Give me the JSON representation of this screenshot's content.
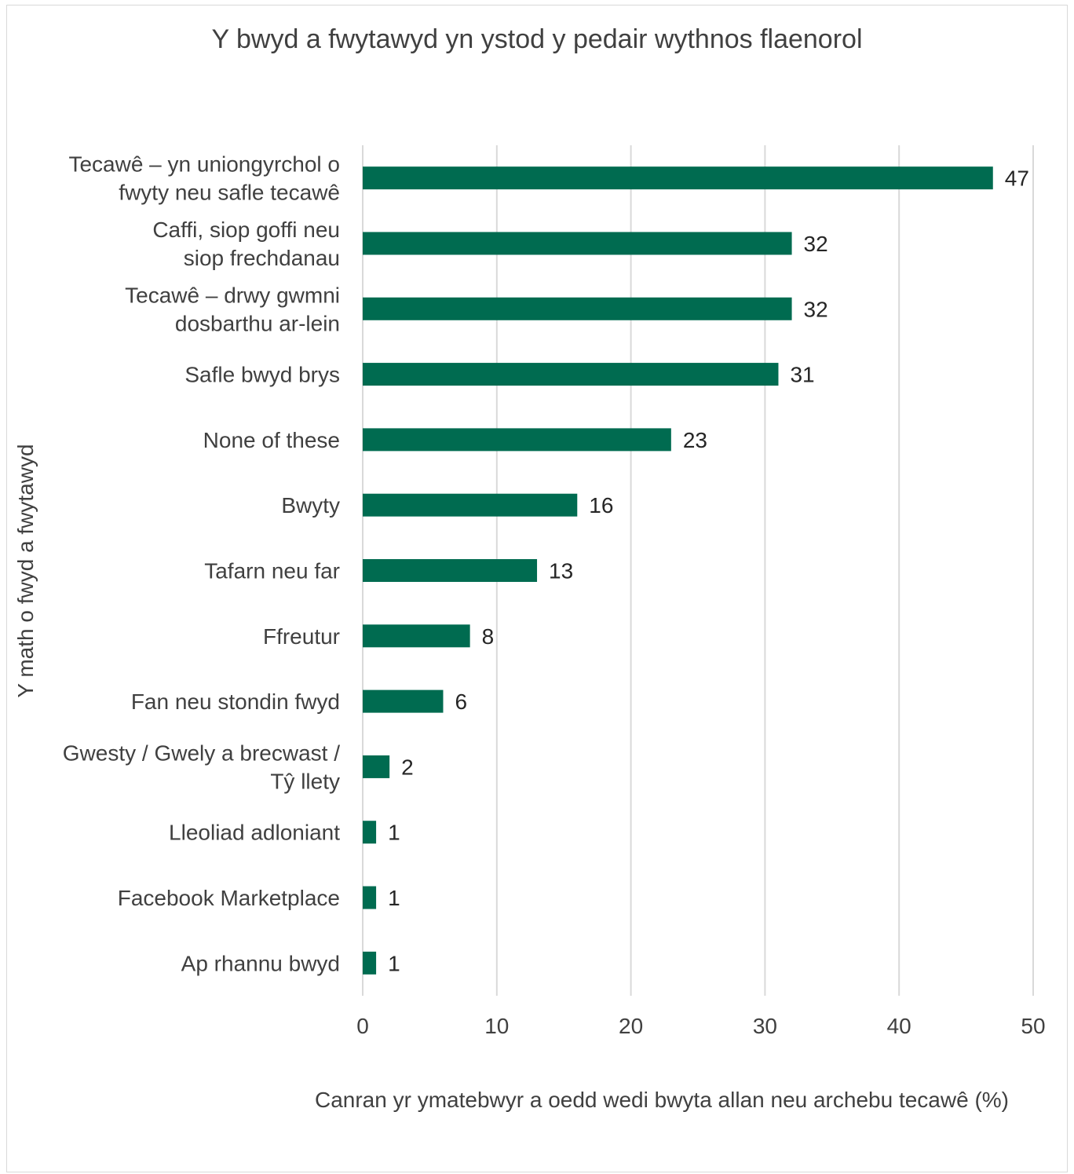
{
  "chart_data": {
    "type": "bar",
    "orientation": "horizontal",
    "title": "Y bwyd a fwytawyd yn ystod y pedair wythnos flaenorol",
    "xlabel": "Canran yr ymatebwyr a oedd wedi bwyta allan neu archebu tecawê (%)",
    "ylabel": "Y math o fwyd a fwytawyd",
    "xlim": [
      0,
      50
    ],
    "xticks": [
      "0",
      "10",
      "20",
      "30",
      "40",
      "50"
    ],
    "grid": true,
    "legend": "none",
    "bar_color": "#006B50",
    "categories": [
      [
        "Tecawê – yn uniongyrchol o",
        "fwyty neu safle tecawê"
      ],
      [
        "Caffi, siop goffi neu",
        "siop frechdanau"
      ],
      [
        "Tecawê – drwy gwmni",
        "dosbarthu ar-lein"
      ],
      [
        "Safle bwyd brys"
      ],
      [
        "None of these"
      ],
      [
        "Bwyty"
      ],
      [
        "Tafarn neu far"
      ],
      [
        "Ffreutur"
      ],
      [
        "Fan neu stondin fwyd"
      ],
      [
        "Gwesty / Gwely a brecwast /",
        "Tŷ llety"
      ],
      [
        "Lleoliad adloniant"
      ],
      [
        "Facebook Marketplace"
      ],
      [
        "Ap rhannu bwyd"
      ]
    ],
    "values": [
      47,
      32,
      32,
      31,
      23,
      16,
      13,
      8,
      6,
      2,
      1,
      1,
      1
    ],
    "data_labels": [
      "47",
      "32",
      "32",
      "31",
      "23",
      "16",
      "13",
      "8",
      "6",
      "2",
      "1",
      "1",
      "1"
    ]
  }
}
